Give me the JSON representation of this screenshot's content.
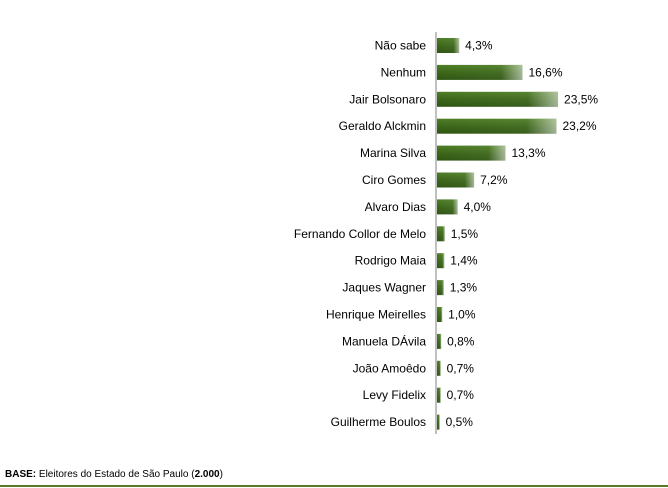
{
  "chart_data": {
    "type": "bar",
    "orientation": "horizontal",
    "categories": [
      "Não sabe",
      "Nenhum",
      "Jair Bolsonaro",
      "Geraldo Alckmin",
      "Marina Silva",
      "Ciro Gomes",
      "Alvaro Dias",
      "Fernando Collor de Melo",
      "Rodrigo Maia",
      "Jaques Wagner",
      "Henrique Meirelles",
      "Manuela DÁvila",
      "João Amoêdo",
      "Levy Fidelix",
      "Guilherme Boulos"
    ],
    "values": [
      4.3,
      16.6,
      23.5,
      23.2,
      13.3,
      7.2,
      4.0,
      1.5,
      1.4,
      1.3,
      1.0,
      0.8,
      0.7,
      0.7,
      0.5
    ],
    "value_labels": [
      "4,3%",
      "16,6%",
      "23,5%",
      "23,2%",
      "13,3%",
      "7,2%",
      "4,0%",
      "1,5%",
      "1,4%",
      "1,3%",
      "1,0%",
      "0,8%",
      "0,7%",
      "0,7%",
      "0,5%"
    ],
    "bar_color": "#3d6b1c",
    "bar_highlight": "#ffffff",
    "axis_color": "#808080",
    "grid": false,
    "legend": false
  },
  "footer": {
    "base_label": "BASE:",
    "base_text": " Eleitores do Estado de São Paulo (",
    "base_count": "2.000",
    "base_close": ")"
  }
}
